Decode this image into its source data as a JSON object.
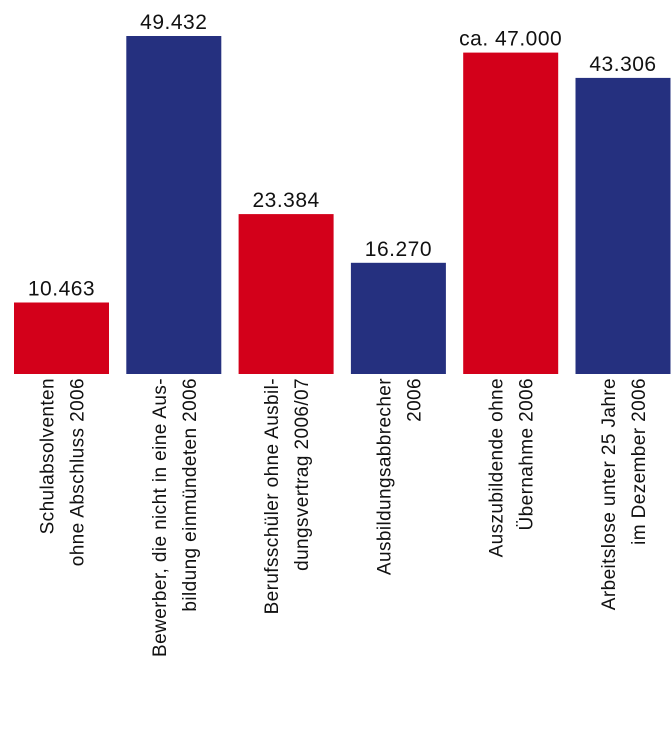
{
  "chart_data": {
    "type": "bar",
    "categories": [
      [
        "Schulabsolventen",
        "ohne Abschluss 2006"
      ],
      [
        "Bewerber, die nicht in eine Aus-",
        "bildung einmündeten 2006"
      ],
      [
        "Berufsschüler ohne Ausbil-",
        "dungsvertrag 2006/07"
      ],
      [
        "Ausbildungsabbrecher",
        "2006"
      ],
      [
        "Auszubildende ohne",
        "Übernahme 2006"
      ],
      [
        "Arbeitslose unter 25 Jahre",
        "im Dezember 2006"
      ]
    ],
    "values": [
      10463,
      49432,
      23384,
      16270,
      47000,
      43306
    ],
    "value_labels": [
      "10.463",
      "49.432",
      "23.384",
      "16.270",
      "ca. 47.000",
      "43.306"
    ],
    "colors": [
      "#d3001a",
      "#25307f",
      "#d3001a",
      "#25307f",
      "#d3001a",
      "#25307f"
    ],
    "ylim": [
      0,
      49432
    ],
    "title": "",
    "xlabel": "",
    "ylabel": ""
  }
}
